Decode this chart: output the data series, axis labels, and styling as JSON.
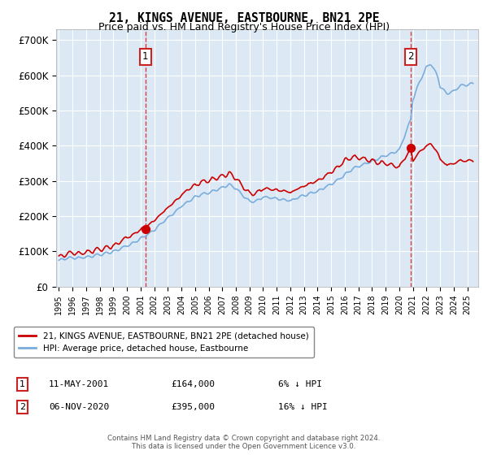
{
  "title": "21, KINGS AVENUE, EASTBOURNE, BN21 2PE",
  "subtitle": "Price paid vs. HM Land Registry's House Price Index (HPI)",
  "ylabel_ticks": [
    "£0",
    "£100K",
    "£200K",
    "£300K",
    "£400K",
    "£500K",
    "£600K",
    "£700K"
  ],
  "ytick_values": [
    0,
    100000,
    200000,
    300000,
    400000,
    500000,
    600000,
    700000
  ],
  "ylim": [
    0,
    730000
  ],
  "plot_bg_color": "#dce9f5",
  "legend_label_red": "21, KINGS AVENUE, EASTBOURNE, BN21 2PE (detached house)",
  "legend_label_blue": "HPI: Average price, detached house, Eastbourne",
  "annotation1_date": "11-MAY-2001",
  "annotation1_price": "£164,000",
  "annotation1_hpi": "6% ↓ HPI",
  "annotation2_date": "06-NOV-2020",
  "annotation2_price": "£395,000",
  "annotation2_hpi": "16% ↓ HPI",
  "footer": "Contains HM Land Registry data © Crown copyright and database right 2024.\nThis data is licensed under the Open Government Licence v3.0.",
  "sale1_year": 2001.36,
  "sale1_value": 164000,
  "sale2_year": 2020.84,
  "sale2_value": 395000,
  "red_line_color": "#cc0000",
  "blue_line_color": "#7aaddd",
  "annotation_box_color": "#cc2222",
  "vline_color": "#cc2222",
  "xlim_start": 1994.8,
  "xlim_end": 2025.8
}
